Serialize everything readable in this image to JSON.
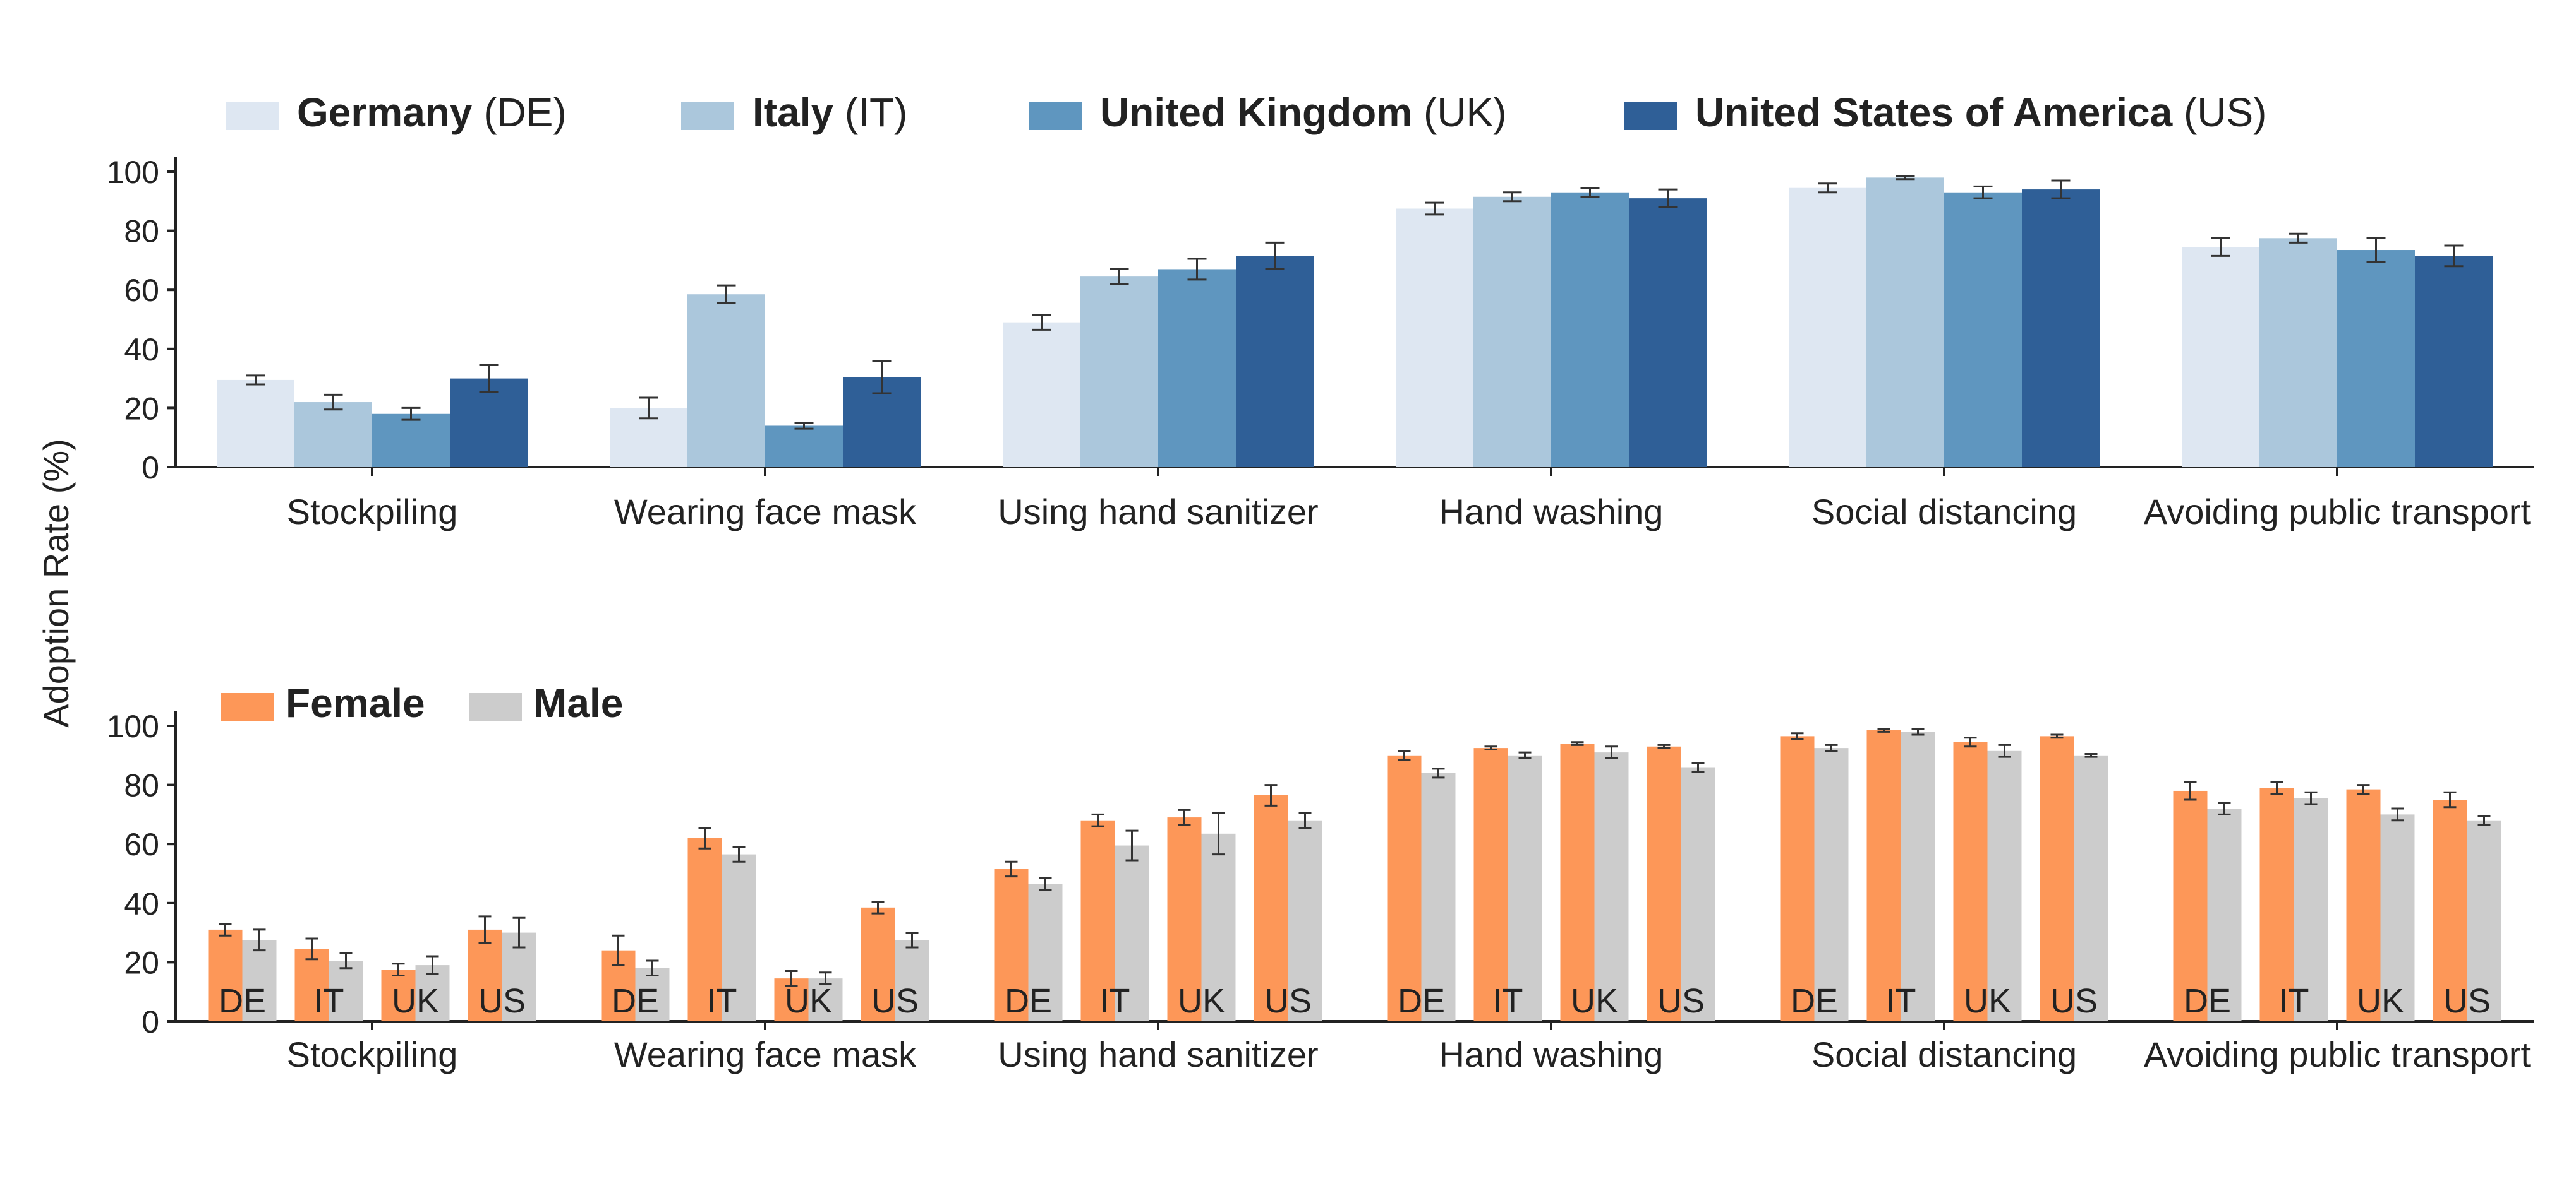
{
  "colors": {
    "DE": "#dee7f2",
    "IT": "#abc7dc",
    "UK": "#5f96bf",
    "US": "#2f5f97",
    "Female": "#fd9758",
    "Male": "#cccccc",
    "axis": "#222222",
    "errorbar": "#333333"
  },
  "chart_data": [
    {
      "type": "bar",
      "panel": "top",
      "ylabel": "Adoption Rate (%)",
      "ylim": [
        0,
        100
      ],
      "yticks": [
        0,
        20,
        40,
        60,
        80,
        100
      ],
      "categories": [
        "Stockpiling",
        "Wearing face mask",
        "Using hand sanitizer",
        "Hand washing",
        "Social distancing",
        "Avoiding public transport"
      ],
      "legend": [
        {
          "key": "DE",
          "name": "Germany",
          "code": "(DE)"
        },
        {
          "key": "IT",
          "name": "Italy",
          "code": "(IT)"
        },
        {
          "key": "UK",
          "name": "United Kingdom",
          "code": "(UK)"
        },
        {
          "key": "US",
          "name": "United States of America",
          "code": "(US)"
        }
      ],
      "legend_position": "top",
      "series": [
        {
          "key": "DE",
          "name": "Germany",
          "values": [
            29.5,
            20,
            49,
            87.5,
            94.5,
            74.5
          ],
          "errors": [
            1.5,
            3.5,
            2.5,
            2,
            1.5,
            3
          ]
        },
        {
          "key": "IT",
          "name": "Italy",
          "values": [
            22,
            58.5,
            64.5,
            91.5,
            98,
            77.5
          ],
          "errors": [
            2.5,
            3,
            2.5,
            1.5,
            0.5,
            1.5
          ]
        },
        {
          "key": "UK",
          "name": "United Kingdom",
          "values": [
            18,
            14,
            67,
            93,
            93,
            73.5
          ],
          "errors": [
            2,
            1,
            3.5,
            1.5,
            2,
            4
          ]
        },
        {
          "key": "US",
          "name": "United States of America",
          "values": [
            30,
            30.5,
            71.5,
            91,
            94,
            71.5
          ],
          "errors": [
            4.5,
            5.5,
            4.5,
            3,
            3,
            3.5
          ]
        }
      ]
    },
    {
      "type": "bar",
      "panel": "bottom",
      "ylabel": "Adoption Rate (%)",
      "ylim": [
        0,
        100
      ],
      "yticks": [
        0,
        20,
        40,
        60,
        80,
        100
      ],
      "categories": [
        "Stockpiling",
        "Wearing face mask",
        "Using hand sanitizer",
        "Hand washing",
        "Social distancing",
        "Avoiding public transport"
      ],
      "countries": [
        "DE",
        "IT",
        "UK",
        "US"
      ],
      "legend": [
        {
          "key": "Female",
          "name": "Female"
        },
        {
          "key": "Male",
          "name": "Male"
        }
      ],
      "legend_position": "top-left",
      "series": [
        {
          "key": "Female",
          "name": "Female",
          "values": [
            [
              31,
              24.5,
              17.5,
              31
            ],
            [
              24,
              62,
              14.5,
              38.5
            ],
            [
              51.5,
              68,
              69,
              76.5
            ],
            [
              90,
              92.5,
              94,
              93
            ],
            [
              96.5,
              98.5,
              94.5,
              96.5
            ],
            [
              78,
              79,
              78.5,
              75
            ]
          ],
          "errors": [
            [
              2,
              3.5,
              2,
              4.5
            ],
            [
              5,
              3.5,
              2.5,
              2
            ],
            [
              2.5,
              2,
              2.5,
              3.5
            ],
            [
              1.5,
              0.5,
              0.5,
              0.5
            ],
            [
              1,
              0.5,
              1.5,
              0.5
            ],
            [
              3,
              2,
              1.5,
              2.5
            ]
          ]
        },
        {
          "key": "Male",
          "name": "Male",
          "values": [
            [
              27.5,
              20.5,
              19,
              30
            ],
            [
              18,
              56.5,
              14.5,
              27.5
            ],
            [
              46.5,
              59.5,
              63.5,
              68
            ],
            [
              84,
              90,
              91,
              86
            ],
            [
              92.5,
              98,
              91.5,
              90
            ],
            [
              72,
              75.5,
              70,
              68
            ]
          ],
          "errors": [
            [
              3.5,
              2.5,
              3,
              5
            ],
            [
              2.5,
              2.5,
              2,
              2.5
            ],
            [
              2,
              5,
              7,
              2.5
            ],
            [
              1.5,
              1,
              2,
              1.5
            ],
            [
              1,
              1,
              2,
              0.5
            ],
            [
              2,
              2,
              2,
              1.5
            ]
          ]
        }
      ]
    }
  ]
}
